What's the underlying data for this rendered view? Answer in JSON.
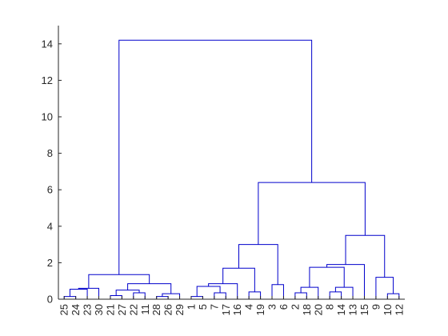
{
  "chart_data": {
    "type": "dendrogram",
    "title": "",
    "xlabel": "",
    "ylabel": "",
    "ylim": [
      0,
      15
    ],
    "yticks": [
      0,
      2,
      4,
      6,
      8,
      10,
      12,
      14
    ],
    "grid": false,
    "link_color": "#0000cc",
    "leaf_order": [
      "25",
      "24",
      "23",
      "30",
      "21",
      "27",
      "22",
      "11",
      "28",
      "26",
      "29",
      "1",
      "5",
      "7",
      "17",
      "16",
      "4",
      "19",
      "3",
      "6",
      "2",
      "18",
      "20",
      "8",
      "14",
      "13",
      "15",
      "9",
      "10",
      "12"
    ],
    "links": [
      {
        "a": "25",
        "b": "24",
        "height": 0.15
      },
      {
        "a": "L1",
        "b": "23",
        "height": 0.55
      },
      {
        "a": "L2",
        "b": "30",
        "height": 0.6
      },
      {
        "a": "21",
        "b": "27",
        "height": 0.2
      },
      {
        "a": "22",
        "b": "11",
        "height": 0.35
      },
      {
        "a": "L4",
        "b": "L5",
        "height": 0.5
      },
      {
        "a": "28",
        "b": "26",
        "height": 0.15
      },
      {
        "a": "L7",
        "b": "29",
        "height": 0.3
      },
      {
        "a": "L6",
        "b": "L8",
        "height": 0.85
      },
      {
        "a": "L3",
        "b": "L9",
        "height": 1.35
      },
      {
        "a": "1",
        "b": "5",
        "height": 0.15
      },
      {
        "a": "7",
        "b": "17",
        "height": 0.35
      },
      {
        "a": "L11",
        "b": "L12",
        "height": 0.7
      },
      {
        "a": "L13",
        "b": "16",
        "height": 0.85
      },
      {
        "a": "4",
        "b": "19",
        "height": 0.4
      },
      {
        "a": "L14",
        "b": "L15",
        "height": 1.7
      },
      {
        "a": "3",
        "b": "6",
        "height": 0.8
      },
      {
        "a": "L16",
        "b": "L17",
        "height": 3.0
      },
      {
        "a": "2",
        "b": "18",
        "height": 0.35
      },
      {
        "a": "L19",
        "b": "20",
        "height": 0.65
      },
      {
        "a": "8",
        "b": "14",
        "height": 0.4
      },
      {
        "a": "L21",
        "b": "13",
        "height": 0.65
      },
      {
        "a": "L20",
        "b": "L22",
        "height": 1.75
      },
      {
        "a": "L23",
        "b": "15",
        "height": 1.9
      },
      {
        "a": "10",
        "b": "12",
        "height": 0.3
      },
      {
        "a": "9",
        "b": "L25",
        "height": 1.2
      },
      {
        "a": "L24",
        "b": "L26",
        "height": 3.5
      },
      {
        "a": "L18",
        "b": "L27",
        "height": 6.4
      },
      {
        "a": "L10",
        "b": "L28",
        "height": 14.2
      }
    ]
  }
}
